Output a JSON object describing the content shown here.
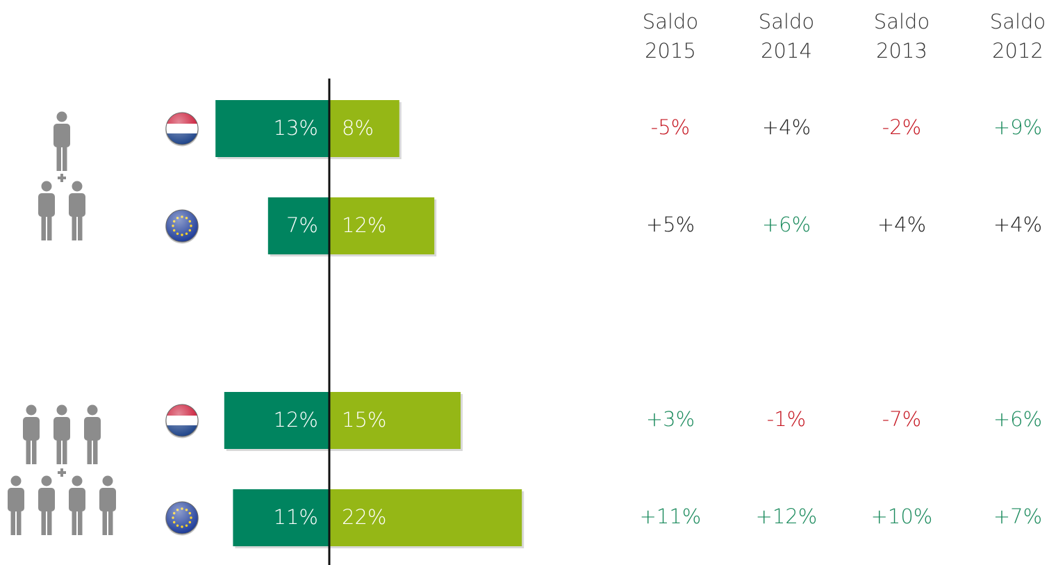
{
  "chart_data": {
    "type": "diverging_bar",
    "series": [
      {
        "color": "#00845f",
        "values": [
          13,
          7,
          12,
          11
        ],
        "value_labels": [
          "13%",
          "7%",
          "12%",
          "11%"
        ]
      },
      {
        "color": "#95b716",
        "values": [
          8,
          12,
          15,
          22
        ],
        "value_labels": [
          "8%",
          "12%",
          "15%",
          "22%"
        ]
      }
    ]
  },
  "table": {
    "header": [
      [
        "Saldo",
        "2015"
      ],
      [
        "Saldo",
        "2014"
      ],
      [
        "Saldo",
        "2013"
      ],
      [
        "Saldo",
        "2012"
      ]
    ],
    "rows": [
      [
        {
          "text": "-5%",
          "color": "#c4141f"
        },
        {
          "text": "+4%",
          "color": "#222222"
        },
        {
          "text": "-2%",
          "color": "#c4141f"
        },
        {
          "text": "+9%",
          "color": "#1a8a5c"
        }
      ],
      [
        {
          "text": "+5%",
          "color": "#222222"
        },
        {
          "text": "+6%",
          "color": "#1a8a5c"
        },
        {
          "text": "+4%",
          "color": "#222222"
        },
        {
          "text": "+4%",
          "color": "#222222"
        }
      ],
      [
        {
          "text": "+3%",
          "color": "#1a8a5c"
        },
        {
          "text": "-1%",
          "color": "#c4141f"
        },
        {
          "text": "-7%",
          "color": "#c4141f"
        },
        {
          "text": "+6%",
          "color": "#1a8a5c"
        }
      ],
      [
        {
          "text": "+11%",
          "color": "#1a8a5c"
        },
        {
          "text": "+12%",
          "color": "#1a8a5c"
        },
        {
          "text": "+10%",
          "color": "#1a8a5c"
        },
        {
          "text": "+7%",
          "color": "#1a8a5c"
        }
      ]
    ]
  }
}
